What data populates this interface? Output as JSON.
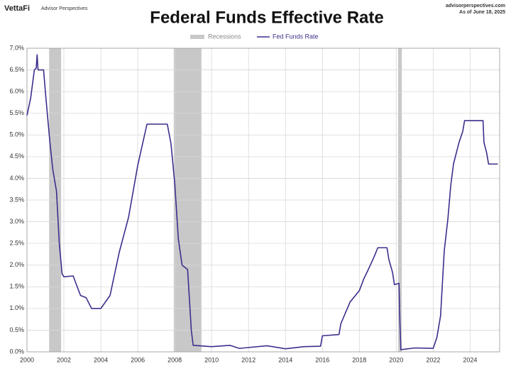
{
  "header": {
    "brand": "VettaFi",
    "brand_sub": "Advisor Perspectives",
    "site": "advisorperspectives.com",
    "asof": "As of June 18, 2025"
  },
  "chart_data": {
    "type": "line",
    "title": "Federal Funds Effective Rate",
    "recessions": {
      "name": "Recessions",
      "color": "#c8c8c8",
      "ranges": [
        [
          2001.2,
          2001.85
        ],
        [
          2007.95,
          2009.45
        ],
        [
          2020.1,
          2020.3
        ]
      ]
    },
    "x": [
      2000.0,
      2000.2,
      2000.4,
      2000.5,
      2000.55,
      2000.6,
      2000.9,
      2001.0,
      2001.1,
      2001.25,
      2001.4,
      2001.6,
      2001.75,
      2001.9,
      2002.0,
      2002.5,
      2002.9,
      2003.2,
      2003.5,
      2004.0,
      2004.5,
      2004.8,
      2005.0,
      2005.5,
      2006.0,
      2006.5,
      2007.0,
      2007.6,
      2007.8,
      2008.0,
      2008.2,
      2008.4,
      2008.7,
      2008.9,
      2009.0,
      2010.0,
      2011.0,
      2011.5,
      2012.0,
      2013.0,
      2014.0,
      2015.0,
      2015.9,
      2016.0,
      2016.9,
      2017.0,
      2017.25,
      2017.5,
      2018.0,
      2018.25,
      2018.5,
      2018.8,
      2019.0,
      2019.5,
      2019.6,
      2019.8,
      2019.9,
      2020.15,
      2020.2,
      2020.25,
      2021.0,
      2022.0,
      2022.2,
      2022.4,
      2022.5,
      2022.6,
      2022.8,
      2022.95,
      2023.1,
      2023.25,
      2023.4,
      2023.6,
      2023.7,
      2024.7,
      2024.75,
      2024.9,
      2025.0,
      2025.5
    ],
    "series": [
      {
        "name": "Fed Funds Rate",
        "color": "#3b2f8c",
        "values": [
          5.45,
          5.85,
          6.5,
          6.54,
          6.85,
          6.5,
          6.5,
          5.98,
          5.5,
          4.8,
          4.2,
          3.7,
          2.5,
          1.8,
          1.73,
          1.75,
          1.3,
          1.25,
          1.0,
          1.0,
          1.3,
          1.9,
          2.3,
          3.1,
          4.3,
          5.25,
          5.25,
          5.25,
          4.8,
          3.9,
          2.6,
          2.0,
          1.9,
          0.5,
          0.15,
          0.12,
          0.15,
          0.08,
          0.1,
          0.14,
          0.07,
          0.12,
          0.13,
          0.37,
          0.4,
          0.65,
          0.9,
          1.15,
          1.41,
          1.69,
          1.91,
          2.19,
          2.4,
          2.4,
          2.13,
          1.83,
          1.55,
          1.58,
          0.65,
          0.05,
          0.09,
          0.08,
          0.33,
          0.83,
          1.58,
          2.33,
          3.08,
          3.83,
          4.33,
          4.58,
          4.83,
          5.08,
          5.33,
          5.33,
          4.83,
          4.58,
          4.33,
          4.33
        ]
      }
    ],
    "xlim": [
      2000,
      2025.6
    ],
    "xticks": [
      2000,
      2002,
      2004,
      2006,
      2008,
      2010,
      2012,
      2014,
      2016,
      2018,
      2020,
      2022,
      2024
    ],
    "ylim": [
      0,
      7
    ],
    "yticks": [
      {
        "value": 0,
        "label": "0.0%"
      },
      {
        "value": 0.5,
        "label": "0.5%"
      },
      {
        "value": 1,
        "label": "1.0%"
      },
      {
        "value": 1.5,
        "label": "1.5%"
      },
      {
        "value": 2,
        "label": "2.0%"
      },
      {
        "value": 2.5,
        "label": "2.5%"
      },
      {
        "value": 3,
        "label": "3.0%"
      },
      {
        "value": 3.5,
        "label": "3.5%"
      },
      {
        "value": 4,
        "label": "4.0%"
      },
      {
        "value": 4.5,
        "label": "4.5%"
      },
      {
        "value": 5,
        "label": "5.0%"
      },
      {
        "value": 5.5,
        "label": "5.5%"
      },
      {
        "value": 6,
        "label": "6.0%"
      },
      {
        "value": 6.5,
        "label": "6.5%"
      },
      {
        "value": 7,
        "label": "7.0%"
      }
    ],
    "grid": true
  }
}
